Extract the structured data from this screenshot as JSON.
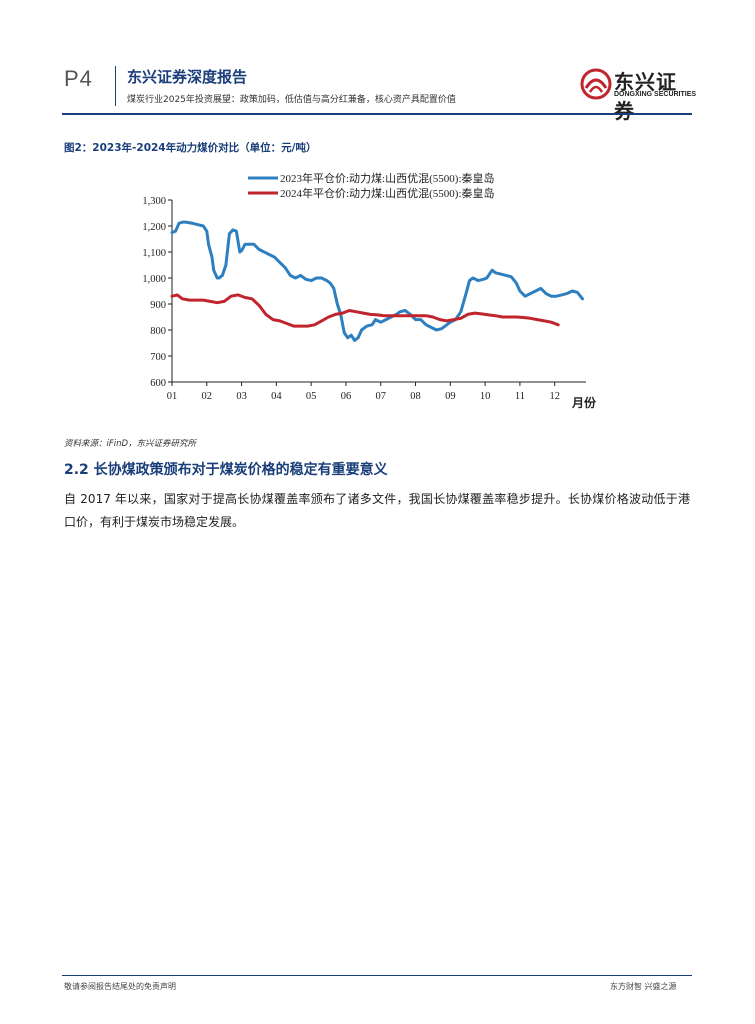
{
  "header": {
    "page_num": "P4",
    "title": "东兴证券深度报告",
    "subtitle": "煤炭行业2025年投资展望：政策加码，低估值与高分红兼备，核心资产具配置价值",
    "logo_cn": "东兴证券",
    "logo_en": "DONGXING SECURITIES",
    "accent_color": "#1a3e7a"
  },
  "figure": {
    "title": "图2：2023年-2024年动力煤价对比（单位：元/吨）",
    "source": "资料来源：iFinD，东兴证券研究所"
  },
  "chart_data": {
    "type": "line",
    "title": "",
    "xlabel": "月份",
    "ylabel": "",
    "ylim": [
      600,
      1300
    ],
    "xlim": [
      1,
      12.9
    ],
    "grid": false,
    "legend_position": "top-left",
    "xticks": [
      1,
      2,
      3,
      4,
      5,
      6,
      7,
      8,
      9,
      10,
      11,
      12
    ],
    "xtick_labels": [
      "01",
      "02",
      "03",
      "04",
      "05",
      "06",
      "07",
      "08",
      "09",
      "10",
      "11",
      "12"
    ],
    "yticks": [
      600,
      700,
      800,
      900,
      1000,
      1100,
      1200,
      1300
    ],
    "ytick_labels": [
      "600",
      "700",
      "800",
      "900",
      "1,000",
      "1,100",
      "1,200",
      "1,300"
    ],
    "series": [
      {
        "name": "2023年平仓价:动力煤:山西优混(5500):秦皇岛",
        "color": "#2e7fc0",
        "x": [
          1.0,
          1.1,
          1.2,
          1.3,
          1.4,
          1.6,
          1.9,
          2.0,
          2.05,
          2.15,
          2.2,
          2.3,
          2.35,
          2.45,
          2.55,
          2.65,
          2.75,
          2.85,
          2.95,
          3.0,
          3.1,
          3.2,
          3.35,
          3.5,
          3.65,
          3.8,
          3.95,
          4.1,
          4.25,
          4.4,
          4.55,
          4.7,
          4.85,
          5.0,
          5.15,
          5.3,
          5.45,
          5.55,
          5.65,
          5.75,
          5.85,
          5.95,
          6.05,
          6.15,
          6.25,
          6.35,
          6.45,
          6.6,
          6.75,
          6.85,
          7.0,
          7.15,
          7.3,
          7.45,
          7.55,
          7.7,
          7.85,
          8.0,
          8.15,
          8.3,
          8.45,
          8.6,
          8.75,
          8.85,
          9.0,
          9.15,
          9.3,
          9.45,
          9.55,
          9.65,
          9.8,
          9.95,
          10.05,
          10.2,
          10.3,
          10.45,
          10.6,
          10.75,
          10.9,
          11.0,
          11.15,
          11.3,
          11.45,
          11.6,
          11.75,
          11.9,
          12.05,
          12.2,
          12.35,
          12.5,
          12.65,
          12.8
        ],
        "values": [
          1175,
          1180,
          1210,
          1215,
          1215,
          1210,
          1200,
          1180,
          1130,
          1080,
          1030,
          1000,
          1000,
          1010,
          1050,
          1170,
          1185,
          1180,
          1100,
          1105,
          1130,
          1130,
          1130,
          1110,
          1100,
          1090,
          1080,
          1060,
          1040,
          1010,
          1000,
          1010,
          995,
          990,
          1000,
          1000,
          990,
          980,
          960,
          900,
          860,
          790,
          770,
          780,
          760,
          770,
          800,
          815,
          820,
          840,
          830,
          840,
          850,
          860,
          870,
          875,
          860,
          840,
          840,
          820,
          810,
          800,
          805,
          815,
          830,
          840,
          870,
          940,
          990,
          1000,
          990,
          995,
          1000,
          1030,
          1020,
          1015,
          1010,
          1005,
          980,
          950,
          930,
          940,
          950,
          960,
          940,
          930,
          930,
          935,
          940,
          950,
          945,
          920
        ]
      },
      {
        "name": "2024年平仓价:动力煤:山西优混(5500):秦皇岛",
        "color": "#c0242c",
        "x": [
          1.0,
          1.15,
          1.3,
          1.5,
          1.7,
          1.9,
          2.1,
          2.3,
          2.5,
          2.7,
          2.9,
          3.1,
          3.3,
          3.5,
          3.7,
          3.9,
          4.1,
          4.3,
          4.5,
          4.7,
          4.9,
          5.1,
          5.3,
          5.5,
          5.7,
          5.9,
          6.1,
          6.3,
          6.5,
          6.7,
          6.9,
          7.1,
          7.3,
          7.5,
          7.7,
          7.9,
          8.1,
          8.3,
          8.5,
          8.7,
          8.9,
          9.1,
          9.3,
          9.5,
          9.7,
          9.9,
          10.1,
          10.3,
          10.5,
          10.7,
          10.9,
          11.1,
          11.3,
          11.5,
          11.7,
          11.9,
          12.1
        ],
        "values": [
          930,
          935,
          920,
          915,
          915,
          915,
          910,
          905,
          910,
          930,
          935,
          925,
          920,
          895,
          860,
          840,
          835,
          825,
          815,
          815,
          815,
          820,
          835,
          850,
          860,
          865,
          875,
          870,
          865,
          860,
          858,
          855,
          855,
          855,
          855,
          855,
          855,
          855,
          850,
          840,
          835,
          840,
          845,
          860,
          865,
          862,
          858,
          855,
          850,
          850,
          850,
          848,
          845,
          840,
          835,
          830,
          820
        ]
      }
    ]
  },
  "section": {
    "heading": "2.2 长协煤政策颁布对于煤炭价格的稳定有重要意义",
    "body": "自 2017 年以来，国家对于提高长协煤覆盖率颁布了诸多文件，我国长协煤覆盖率稳步提升。长协煤价格波动低于港口价，有利于煤炭市场稳定发展。"
  },
  "footer": {
    "left": "敬请参阅报告结尾处的免责声明",
    "right": "东方财智 兴盛之源"
  }
}
